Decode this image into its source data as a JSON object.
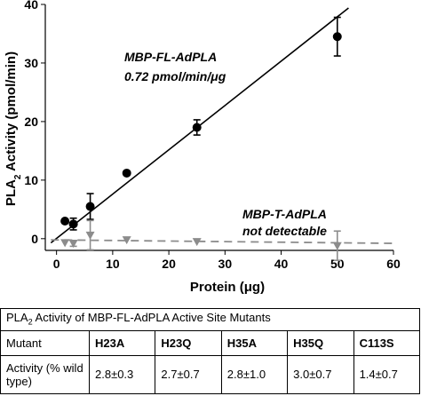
{
  "chart_data": {
    "type": "scatter",
    "xlabel": "Protein (μg)",
    "ylabel_main": "PLA",
    "ylabel_sub": "2",
    "ylabel_rest": " Activity (pmol/min)",
    "xlim": [
      -2,
      60
    ],
    "ylim": [
      -2,
      40
    ],
    "x_ticks": [
      0,
      10,
      20,
      30,
      40,
      50,
      60
    ],
    "y_ticks": [
      0,
      10,
      20,
      30,
      40
    ],
    "grid": false,
    "series": [
      {
        "name": "MBP-FL-AdPLA",
        "color": "#000000",
        "marker": "circle",
        "x": [
          1.5,
          3,
          6,
          12.5,
          25,
          50
        ],
        "y": [
          3.0,
          2.5,
          5.5,
          11.2,
          19.0,
          34.5
        ],
        "err": [
          0,
          1.0,
          2.2,
          0,
          1.3,
          3.3
        ],
        "fit": {
          "x": [
            -1,
            52
          ],
          "y": [
            -0.72,
            39.4
          ],
          "style": "solid"
        },
        "annotation": [
          "MBP-FL-AdPLA",
          "0.72 pmol/min/μg"
        ]
      },
      {
        "name": "MBP-T-AdPLA",
        "color": "#8c8c8c",
        "marker": "triangle-down",
        "x": [
          1.5,
          3,
          6,
          12.5,
          25,
          50
        ],
        "y": [
          -0.7,
          -0.8,
          0.6,
          -0.2,
          -0.5,
          -1.2
        ],
        "err": [
          0,
          0.5,
          2.5,
          0,
          0,
          2.5
        ],
        "fit": {
          "x": [
            -1,
            60
          ],
          "y": [
            -0.2,
            -0.8
          ],
          "style": "dashed"
        },
        "annotation": [
          "MBP-T-AdPLA",
          "not detectable"
        ]
      }
    ]
  },
  "table": {
    "caption_main": "PLA",
    "caption_sub": "2",
    "caption_rest": " Activity of MBP-FL-AdPLA Active Site Mutants",
    "row_header_1": "Mutant",
    "row_header_2": "Activity (% wild type)",
    "mutants": [
      "H23A",
      "H23Q",
      "H35A",
      "H35Q",
      "C113S"
    ],
    "activities": [
      "2.8±0.3",
      "2.7±0.7",
      "2.8±1.0",
      "3.0±0.7",
      "1.4±0.7"
    ]
  }
}
